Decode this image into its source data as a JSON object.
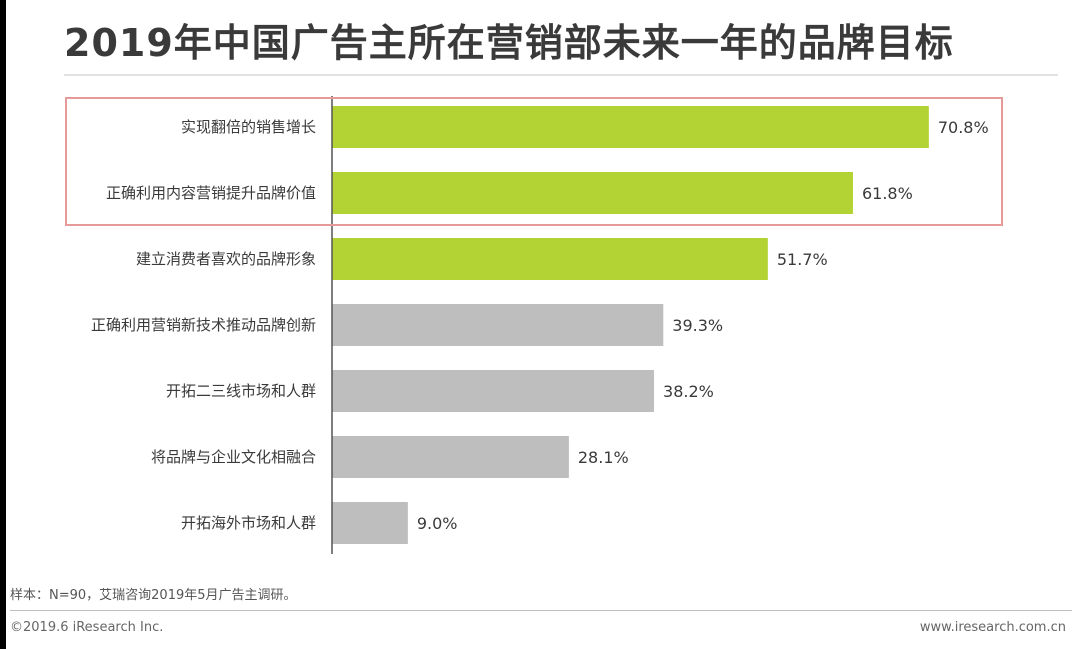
{
  "title": "2019年中国广告主所在营销部未来一年的品牌目标",
  "chart_data": {
    "type": "bar",
    "orientation": "horizontal",
    "unit": "%",
    "xlim": [
      0,
      100
    ],
    "grid": false,
    "categories": [
      "实现翻倍的销售增长",
      "正确利用内容营销提升品牌价值",
      "建立消费者喜欢的品牌形象",
      "正确利用营销新技术推动品牌创新",
      "开拓二三线市场和人群",
      "将品牌与企业文化相融合",
      "开拓海外市场和人群"
    ],
    "values": [
      70.8,
      61.8,
      51.7,
      39.3,
      38.2,
      28.1,
      9.0
    ],
    "value_labels": [
      "70.8%",
      "61.8%",
      "51.7%",
      "39.3%",
      "38.2%",
      "28.1%",
      "9.0%"
    ],
    "highlighted": [
      true,
      true,
      true,
      false,
      false,
      false,
      false
    ],
    "boxed_categories": [
      0,
      1
    ]
  },
  "colors": {
    "highlight_bar": "#b3d334",
    "default_bar": "#bfbebe",
    "box_outline": "#e79a9a",
    "axis": "#555555"
  },
  "footnote": "样本：N=90，艾瑞咨询2019年5月广告主调研。",
  "copyright": "©2019.6 iResearch Inc.",
  "website": "www.iresearch.com.cn"
}
